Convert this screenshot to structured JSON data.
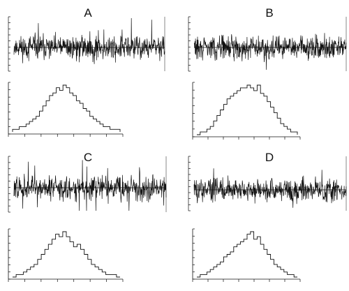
{
  "chart_data": [
    {
      "type": "line",
      "panel": "A",
      "trace": {
        "baseline": 0.0,
        "amplitude": 1.0,
        "density": "moderate"
      },
      "histogram": {
        "type": "bar",
        "shape": "single-peak",
        "values": [
          1,
          1,
          2,
          2,
          3,
          4,
          5,
          6,
          8,
          10,
          12,
          14,
          15,
          17,
          16,
          18,
          17,
          15,
          14,
          12,
          11,
          9,
          8,
          6,
          5,
          4,
          3,
          2,
          2,
          1,
          1,
          1
        ]
      }
    },
    {
      "type": "line",
      "panel": "B",
      "trace": {
        "baseline": 0.0,
        "amplitude": 1.0,
        "density": "dense"
      },
      "histogram": {
        "type": "bar",
        "shape": "broad",
        "values": [
          0,
          1,
          1,
          2,
          3,
          5,
          7,
          9,
          11,
          13,
          14,
          15,
          16,
          17,
          17,
          18,
          17,
          16,
          18,
          15,
          14,
          12,
          10,
          8,
          6,
          4,
          3,
          2,
          1,
          1
        ]
      }
    },
    {
      "type": "line",
      "panel": "C",
      "trace": {
        "baseline": 0.0,
        "amplitude": 1.0,
        "density": "spiky"
      },
      "histogram": {
        "type": "bar",
        "shape": "single-peak",
        "values": [
          0,
          1,
          1,
          2,
          3,
          4,
          5,
          7,
          9,
          11,
          13,
          15,
          17,
          16,
          18,
          16,
          14,
          12,
          13,
          11,
          9,
          7,
          5,
          4,
          3,
          2,
          1,
          1,
          1,
          0
        ]
      }
    },
    {
      "type": "line",
      "panel": "D",
      "trace": {
        "baseline": 0.0,
        "amplitude": 1.0,
        "density": "offset"
      },
      "histogram": {
        "type": "bar",
        "shape": "skewed",
        "values": [
          0,
          1,
          1,
          2,
          3,
          4,
          5,
          6,
          8,
          9,
          10,
          12,
          13,
          14,
          15,
          17,
          18,
          15,
          16,
          13,
          11,
          9,
          7,
          5,
          4,
          3,
          2,
          1,
          1,
          0
        ]
      }
    }
  ],
  "labels": {
    "a": "A",
    "b": "B",
    "c": "C",
    "d": "D"
  },
  "colors": {
    "ink": "#111111",
    "background": "#ffffff"
  }
}
